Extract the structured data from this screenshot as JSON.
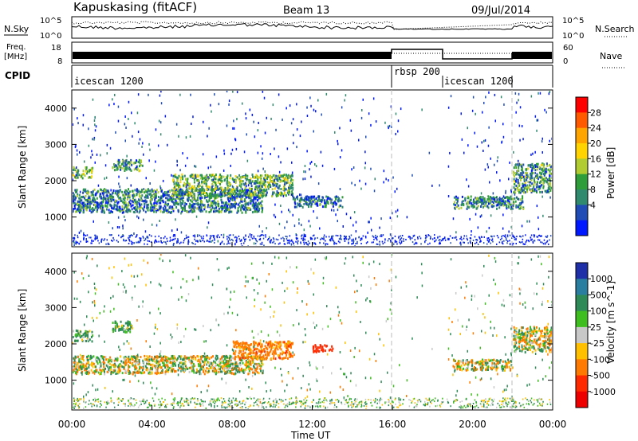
{
  "header": {
    "radar": "Kapuskasing (fitACF)",
    "beam": "Beam 13",
    "date": "09/Jul/2014"
  },
  "noise_panel": {
    "left_label": "N.Sky",
    "left_ticks": [
      "10^5",
      "10^0"
    ],
    "right_label": "N.Search",
    "right_ticks": [
      "10^5",
      "10^0"
    ]
  },
  "freq_panel": {
    "left_label_1": "Freq.",
    "left_label_2": "[MHz]",
    "left_ticks": [
      "18",
      "8"
    ],
    "right_label": "Nave",
    "right_ticks": [
      "60",
      "0"
    ]
  },
  "cpid_panel": {
    "label": "CPID",
    "segments": [
      {
        "name": "icescan 1200",
        "start_hour": 0
      },
      {
        "name": "rbsp 200",
        "start_hour": 16
      },
      {
        "name": "icescan 1200",
        "start_hour": 18.5
      }
    ],
    "boundaries_hours": [
      16,
      18.5,
      22
    ]
  },
  "axes": {
    "x_ticks": [
      "00:00",
      "04:00",
      "08:00",
      "12:00",
      "16:00",
      "20:00",
      "00:00"
    ],
    "x_label": "Time UT",
    "y_ticks": [
      "1000",
      "2000",
      "3000",
      "4000"
    ],
    "y_label": "Slant Range [km]"
  },
  "power_colorbar": {
    "label": "Power [dB]",
    "ticks": [
      "28",
      "24",
      "20",
      "16",
      "12",
      "8",
      "4"
    ],
    "colors": [
      "#ff0000",
      "#ff5a00",
      "#ffa500",
      "#ffd400",
      "#b0cc30",
      "#2f9e3a",
      "#2f8a6e",
      "#1f4db5",
      "#0018ff"
    ]
  },
  "velocity_colorbar": {
    "label": "Velocity [m s^-1]",
    "ticks": [
      "1000",
      "500",
      "100",
      "25",
      "-25",
      "-100",
      "-500",
      "-1000"
    ],
    "colors": [
      "#1f2fa8",
      "#2a7e9f",
      "#2e8b57",
      "#3fbf1f",
      "#c8c8c8",
      "#ffc000",
      "#ff7a00",
      "#ff2a00",
      "#ee0000"
    ]
  },
  "chart_data": [
    {
      "type": "heatmap",
      "title": "Power",
      "xlabel": "Time UT",
      "ylabel": "Slant Range [km]",
      "xlim": [
        0,
        24
      ],
      "ylim": [
        180,
        4500
      ],
      "colorbar_range": [
        0,
        30
      ],
      "colorbar_label": "Power [dB]",
      "regions": [
        {
          "t0": 0.0,
          "t1": 9.5,
          "r0": 1150,
          "r1": 1800,
          "value": 8
        },
        {
          "t0": 0.0,
          "t1": 1.0,
          "r0": 2100,
          "r1": 2400,
          "value": 14
        },
        {
          "t0": 2.0,
          "t1": 3.5,
          "r0": 2300,
          "r1": 2600,
          "value": 10
        },
        {
          "t0": 5.0,
          "t1": 11.0,
          "r0": 1600,
          "r1": 2200,
          "value": 12
        },
        {
          "t0": 11.0,
          "t1": 13.5,
          "r0": 1300,
          "r1": 1600,
          "value": 8
        },
        {
          "t0": 19.0,
          "t1": 22.5,
          "r0": 1250,
          "r1": 1600,
          "value": 8
        },
        {
          "t0": 22.0,
          "t1": 24.0,
          "r0": 1700,
          "r1": 2500,
          "value": 10
        }
      ]
    },
    {
      "type": "heatmap",
      "title": "Velocity",
      "xlabel": "Time UT",
      "ylabel": "Slant Range [km]",
      "xlim": [
        0,
        24
      ],
      "ylim": [
        180,
        4500
      ],
      "colorbar_range": [
        -1000,
        1000
      ],
      "colorbar_label": "Velocity [m s^-1]",
      "regions": [
        {
          "t0": 0.0,
          "t1": 9.5,
          "r0": 1200,
          "r1": 1700,
          "value": 0
        },
        {
          "t0": 0.0,
          "t1": 1.0,
          "r0": 2100,
          "r1": 2400,
          "value": 150
        },
        {
          "t0": 2.0,
          "t1": 3.0,
          "r0": 2350,
          "r1": 2650,
          "value": 150
        },
        {
          "t0": 8.0,
          "t1": 11.0,
          "r0": 1600,
          "r1": 2100,
          "value": -300
        },
        {
          "t0": 12.0,
          "t1": 13.0,
          "r0": 1800,
          "r1": 2000,
          "value": -800
        },
        {
          "t0": 19.0,
          "t1": 22.0,
          "r0": 1300,
          "r1": 1600,
          "value": 0
        },
        {
          "t0": 22.0,
          "t1": 24.0,
          "r0": 1800,
          "r1": 2500,
          "value": 10
        }
      ]
    }
  ]
}
